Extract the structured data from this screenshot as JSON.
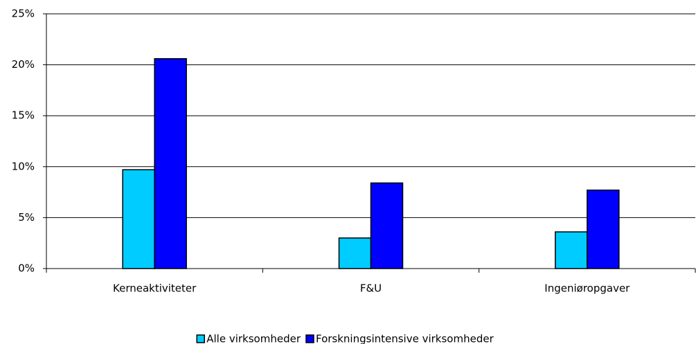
{
  "chart_data": {
    "type": "bar",
    "categories": [
      "Kerneaktiviteter",
      "F&U",
      "Ingeniøropgaver"
    ],
    "series": [
      {
        "name": "Alle virksomheder",
        "color": "#00ccff",
        "values": [
          9.7,
          3.0,
          3.6
        ]
      },
      {
        "name": "Forskningsintensive virksomheder",
        "color": "#0000ff",
        "values": [
          20.6,
          8.4,
          7.7
        ]
      }
    ],
    "ylim": [
      0,
      25
    ],
    "yticks": [
      {
        "value": 0,
        "label": "0%"
      },
      {
        "value": 5,
        "label": "5%"
      },
      {
        "value": 10,
        "label": "10%"
      },
      {
        "value": 15,
        "label": "15%"
      },
      {
        "value": 20,
        "label": "20%"
      },
      {
        "value": 25,
        "label": "25%"
      }
    ],
    "grid": true,
    "legend": "bottom"
  }
}
